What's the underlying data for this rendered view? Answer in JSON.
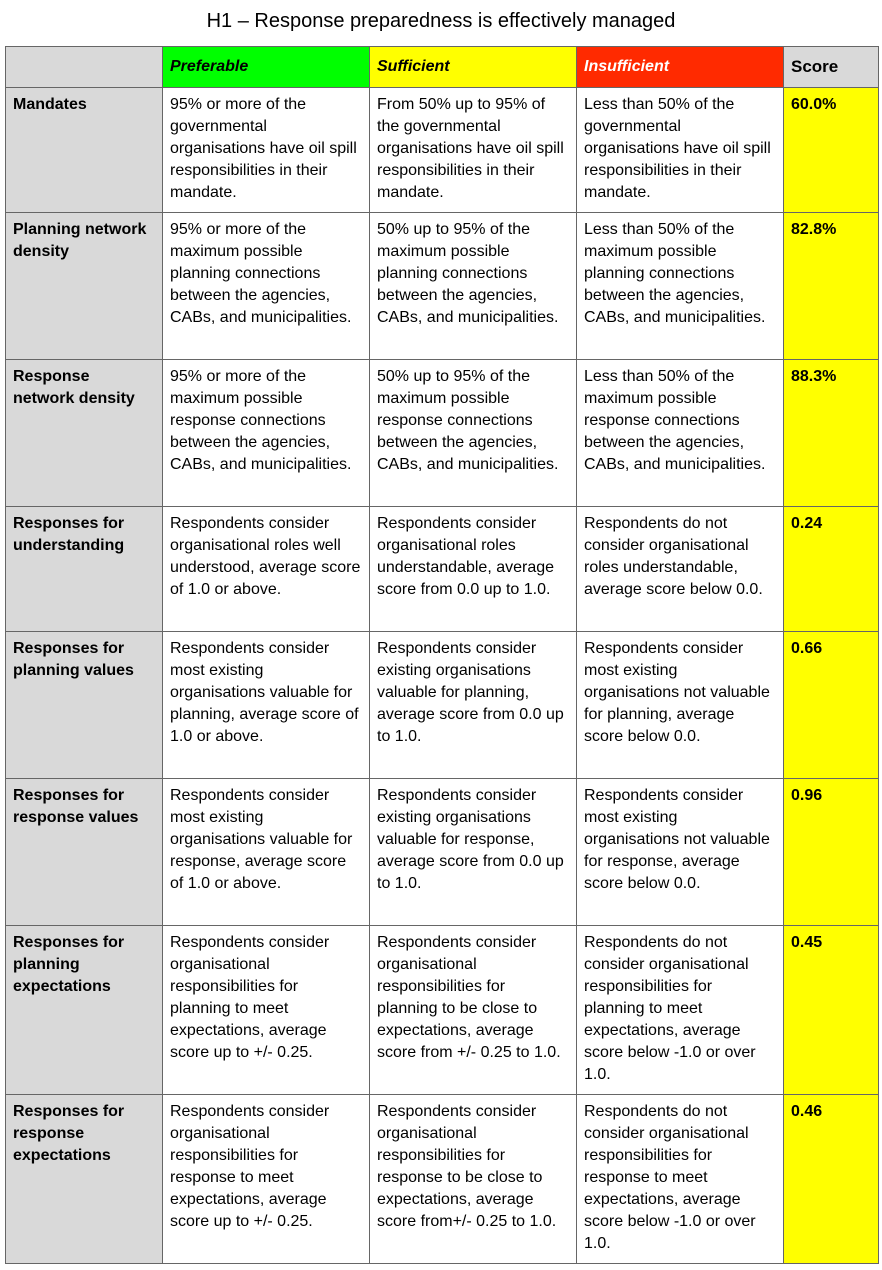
{
  "title": "H1 – Response preparedness is effectively managed",
  "columns": {
    "preferable": "Preferable",
    "sufficient": "Sufficient",
    "insufficient": "Insufficient",
    "score": "Score"
  },
  "colors": {
    "preferable": "#00ff00",
    "sufficient": "#ffff00",
    "insufficient": "#ff2a00",
    "score_cells": "#ffff00",
    "row_headers": "#d9d9d9"
  },
  "rows": [
    {
      "label": "Mandates",
      "preferable": "95% or more of the governmental organisations have oil spill responsibilities in their mandate.",
      "sufficient": "From 50% up to 95% of the governmental organisations have oil spill responsibilities in their mandate.",
      "insufficient": "Less than 50% of the governmental organisations have oil spill responsibilities in their mandate.",
      "score": "60.0%"
    },
    {
      "label": "Planning network density",
      "preferable": "95% or more of the maximum possible planning connections between the agencies, CABs, and municipalities.",
      "sufficient": "50% up to 95% of the maximum possible planning connections between the agencies, CABs, and municipalities.",
      "insufficient": "Less than 50% of the maximum possible planning connections between the agencies, CABs, and municipalities.",
      "score": "82.8%"
    },
    {
      "label": "Response network density",
      "preferable": "95% or more of the maximum possible response connections between the agencies, CABs, and municipalities.",
      "sufficient": "50% up to 95% of the maximum possible response connections between the agencies, CABs, and municipalities.",
      "insufficient": "Less than 50% of the maximum possible response connections between the agencies, CABs, and municipalities.",
      "score": "88.3%"
    },
    {
      "label": "Responses for understanding",
      "preferable": "Respondents consider organisational roles well understood, average score of 1.0 or above.",
      "sufficient": "Respondents consider organisational roles understandable, average score from 0.0 up to 1.0.",
      "insufficient": "Respondents do not consider organisational roles understandable, average score below 0.0.",
      "score": "0.24"
    },
    {
      "label": "Responses for planning values",
      "preferable": "Respondents consider most existing organisations valuable for planning, average score of 1.0 or above.",
      "sufficient": "Respondents consider existing organisations valuable for planning, average score from 0.0 up to 1.0.",
      "insufficient": "Respondents consider most existing organisations not valuable for planning, average score below 0.0.",
      "score": "0.66"
    },
    {
      "label": "Responses for response values",
      "preferable": "Respondents consider most existing organisations valuable for response, average score of 1.0 or above.",
      "sufficient": "Respondents consider existing organisations valuable for response, average score from 0.0 up to 1.0.",
      "insufficient": "Respondents consider most existing organisations not valuable for response, average score below 0.0.",
      "score": "0.96"
    },
    {
      "label": "Responses for planning expectations",
      "preferable": "Respondents consider organisational responsibilities for planning to meet expectations, average score up to +/- 0.25.",
      "sufficient": "Respondents consider organisational responsibilities for planning to be close to expectations, average score from +/- 0.25 to 1.0.",
      "insufficient": "Respondents do not consider organisational responsibilities for planning to meet expectations, average score below -1.0 or over 1.0.",
      "score": "0.45"
    },
    {
      "label": "Responses for response expectations",
      "preferable": "Respondents consider organisational responsibilities for response to meet expectations, average score up to +/- 0.25.",
      "sufficient": "Respondents consider organisational responsibilities for response to be close to expectations, average score from+/- 0.25 to 1.0.",
      "insufficient": "Respondents do not consider organisational responsibilities for response to meet expectations, average score below -1.0 or over 1.0.",
      "score": "0.46"
    }
  ]
}
